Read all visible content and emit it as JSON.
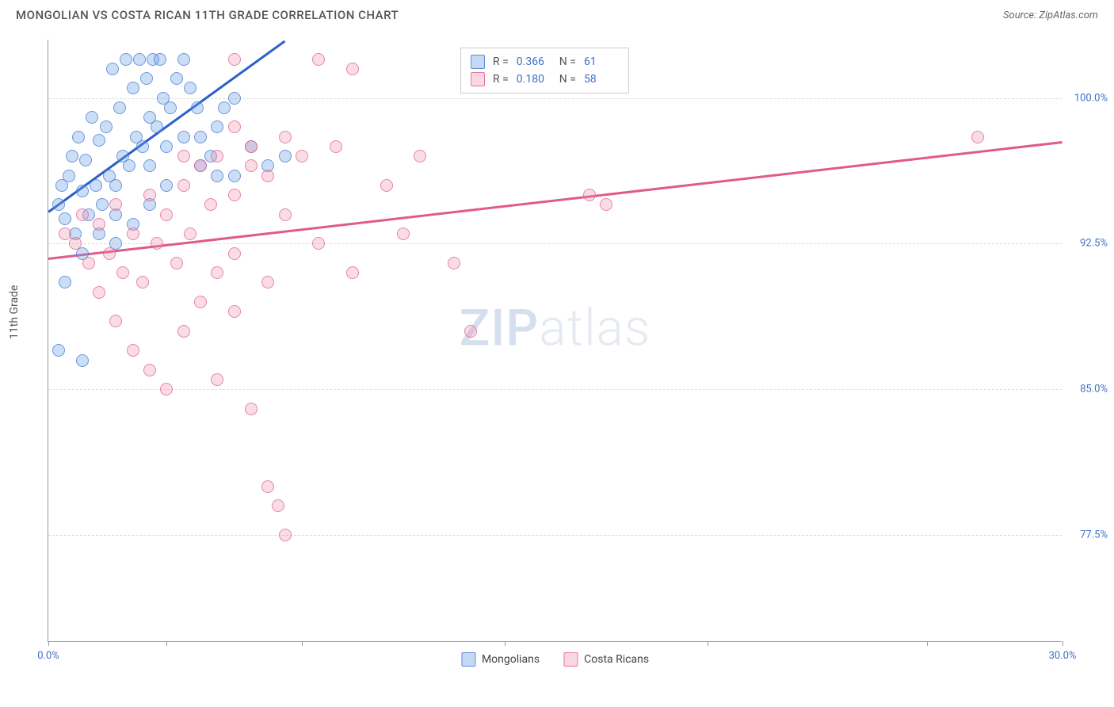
{
  "header": {
    "title": "MONGOLIAN VS COSTA RICAN 11TH GRADE CORRELATION CHART",
    "source": "Source: ZipAtlas.com"
  },
  "chart": {
    "type": "scatter",
    "y_label": "11th Grade",
    "background_color": "#ffffff",
    "grid_color": "#dddddd",
    "axis_color": "#999999",
    "label_color": "#3b6fc9",
    "xlim": [
      0,
      30
    ],
    "ylim": [
      72,
      103
    ],
    "x_ticks": [
      0,
      3.5,
      7.5,
      13.5,
      19.5,
      26,
      30
    ],
    "x_tick_labels": {
      "0": "0.0%",
      "30": "30.0%"
    },
    "y_ticks": [
      77.5,
      85.0,
      92.5,
      100.0
    ],
    "y_tick_labels": [
      "77.5%",
      "85.0%",
      "92.5%",
      "100.0%"
    ],
    "watermark": "ZIPatlas",
    "series": [
      {
        "name": "Mongolians",
        "color_fill": "rgba(110,160,230,0.35)",
        "color_stroke": "rgba(70,120,210,0.7)",
        "trend_color": "#2b5fc9",
        "R": "0.366",
        "N": "61",
        "trend": {
          "x1": 0,
          "y1": 94.2,
          "x2": 7,
          "y2": 103
        },
        "points": [
          [
            0.3,
            94.5
          ],
          [
            0.5,
            93.8
          ],
          [
            0.4,
            95.5
          ],
          [
            0.8,
            93.0
          ],
          [
            0.6,
            96.0
          ],
          [
            1.0,
            95.2
          ],
          [
            0.7,
            97.0
          ],
          [
            1.2,
            94.0
          ],
          [
            0.9,
            98.0
          ],
          [
            1.4,
            95.5
          ],
          [
            1.1,
            96.8
          ],
          [
            1.6,
            94.5
          ],
          [
            0.5,
            90.5
          ],
          [
            1.0,
            86.5
          ],
          [
            0.3,
            87.0
          ],
          [
            1.3,
            99.0
          ],
          [
            1.8,
            96.0
          ],
          [
            1.5,
            97.8
          ],
          [
            2.0,
            95.5
          ],
          [
            1.7,
            98.5
          ],
          [
            2.2,
            97.0
          ],
          [
            1.9,
            101.5
          ],
          [
            2.4,
            96.5
          ],
          [
            2.1,
            99.5
          ],
          [
            2.6,
            98.0
          ],
          [
            2.3,
            102.0
          ],
          [
            2.8,
            97.5
          ],
          [
            2.5,
            100.5
          ],
          [
            3.0,
            99.0
          ],
          [
            2.7,
            102.0
          ],
          [
            3.2,
            98.5
          ],
          [
            2.9,
            101.0
          ],
          [
            3.4,
            100.0
          ],
          [
            3.1,
            102.0
          ],
          [
            3.6,
            99.5
          ],
          [
            3.3,
            102.0
          ],
          [
            3.8,
            101.0
          ],
          [
            4.0,
            102.0
          ],
          [
            4.2,
            100.5
          ],
          [
            4.4,
            99.5
          ],
          [
            2.0,
            94.0
          ],
          [
            2.5,
            93.5
          ],
          [
            3.0,
            94.5
          ],
          [
            3.5,
            95.5
          ],
          [
            4.5,
            98.0
          ],
          [
            5.0,
            98.5
          ],
          [
            4.8,
            97.0
          ],
          [
            5.2,
            99.5
          ],
          [
            5.5,
            100.0
          ],
          [
            3.0,
            96.5
          ],
          [
            3.5,
            97.5
          ],
          [
            4.0,
            98.0
          ],
          [
            4.5,
            96.5
          ],
          [
            1.5,
            93.0
          ],
          [
            2.0,
            92.5
          ],
          [
            5.0,
            96.0
          ],
          [
            5.5,
            96.0
          ],
          [
            6.0,
            97.5
          ],
          [
            6.5,
            96.5
          ],
          [
            7.0,
            97.0
          ],
          [
            1.0,
            92.0
          ]
        ]
      },
      {
        "name": "Costa Ricans",
        "color_fill": "rgba(240,140,170,0.3)",
        "color_stroke": "rgba(225,95,140,0.7)",
        "trend_color": "#e05a8b",
        "R": "0.180",
        "N": "58",
        "trend": {
          "x1": 0,
          "y1": 91.8,
          "x2": 30,
          "y2": 97.8
        },
        "points": [
          [
            0.5,
            93.0
          ],
          [
            0.8,
            92.5
          ],
          [
            1.0,
            94.0
          ],
          [
            1.2,
            91.5
          ],
          [
            1.5,
            93.5
          ],
          [
            1.8,
            92.0
          ],
          [
            2.0,
            94.5
          ],
          [
            2.2,
            91.0
          ],
          [
            2.5,
            93.0
          ],
          [
            2.8,
            90.5
          ],
          [
            3.0,
            95.0
          ],
          [
            3.2,
            92.5
          ],
          [
            3.5,
            94.0
          ],
          [
            3.8,
            91.5
          ],
          [
            4.0,
            95.5
          ],
          [
            4.2,
            93.0
          ],
          [
            4.5,
            96.5
          ],
          [
            4.8,
            94.5
          ],
          [
            5.0,
            97.0
          ],
          [
            5.5,
            95.0
          ],
          [
            6.0,
            97.5
          ],
          [
            6.5,
            96.0
          ],
          [
            7.0,
            98.0
          ],
          [
            7.5,
            97.0
          ],
          [
            8.0,
            102.0
          ],
          [
            8.5,
            97.5
          ],
          [
            9.0,
            101.5
          ],
          [
            1.5,
            90.0
          ],
          [
            2.0,
            88.5
          ],
          [
            2.5,
            87.0
          ],
          [
            3.0,
            86.0
          ],
          [
            3.5,
            85.0
          ],
          [
            4.0,
            88.0
          ],
          [
            4.5,
            89.5
          ],
          [
            5.0,
            85.5
          ],
          [
            5.5,
            89.0
          ],
          [
            6.0,
            84.0
          ],
          [
            5.0,
            91.0
          ],
          [
            5.5,
            92.0
          ],
          [
            6.5,
            80.0
          ],
          [
            6.8,
            79.0
          ],
          [
            7.0,
            77.5
          ],
          [
            6.5,
            90.5
          ],
          [
            7.0,
            94.0
          ],
          [
            8.0,
            92.5
          ],
          [
            9.0,
            91.0
          ],
          [
            10.0,
            95.5
          ],
          [
            10.5,
            93.0
          ],
          [
            11.0,
            97.0
          ],
          [
            12.0,
            91.5
          ],
          [
            12.5,
            88.0
          ],
          [
            5.5,
            102.0
          ],
          [
            6.0,
            96.5
          ],
          [
            16.0,
            95.0
          ],
          [
            16.5,
            94.5
          ],
          [
            27.5,
            98.0
          ],
          [
            5.5,
            98.5
          ],
          [
            4.0,
            97.0
          ]
        ]
      }
    ],
    "bottom_legend": [
      "Mongolians",
      "Costa Ricans"
    ]
  }
}
